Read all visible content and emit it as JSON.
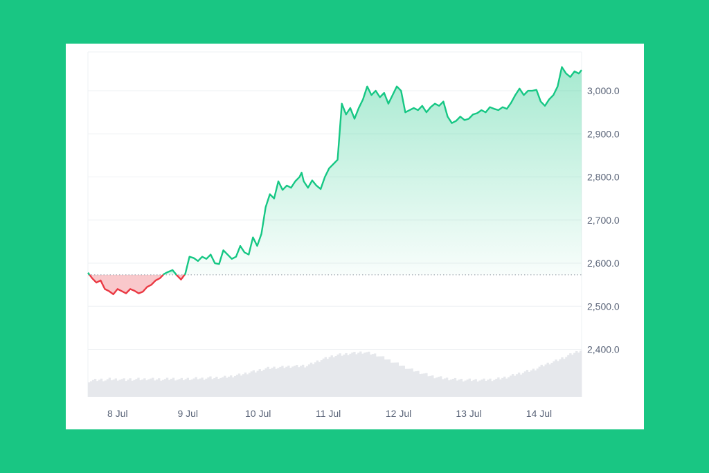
{
  "colors": {
    "page_background": "#19c683",
    "card_background": "#ffffff",
    "up_line": "#16c784",
    "down_line": "#ea3943",
    "up_fill": "#16c784",
    "down_fill": "#ea3943",
    "grid": "#eef0f3",
    "baseline": "#9aa1ab",
    "volume": "#e6e8ec",
    "tick_text": "#5a6478"
  },
  "chart_data": {
    "type": "area",
    "title": "",
    "xlabel": "",
    "ylabel": "",
    "x_tick_labels": [
      "8 Jul",
      "9 Jul",
      "10 Jul",
      "11 Jul",
      "12 Jul",
      "13 Jul",
      "14 Jul"
    ],
    "y_tick_labels": [
      "2,400.0",
      "2,500.0",
      "2,600.0",
      "2,700.0",
      "2,800.0",
      "2,900.0",
      "3,000.0"
    ],
    "y_ticks": [
      2400,
      2500,
      2600,
      2700,
      2800,
      2900,
      3000
    ],
    "ylim": [
      2290,
      3090
    ],
    "xlim": [
      0,
      7.0
    ],
    "baseline": 2573,
    "y_axis_position": "right",
    "grid": true,
    "legend": "none",
    "x_unit": "days from start of 8 Jul",
    "series": [
      {
        "x": [
          0,
          0.06,
          0.12,
          0.18,
          0.24,
          0.3,
          0.36,
          0.42,
          0.48,
          0.54,
          0.6,
          0.66,
          0.72,
          0.78,
          0.84,
          0.9,
          0.96,
          1.02,
          1.08,
          1.14,
          1.2,
          1.26,
          1.32,
          1.38,
          1.44,
          1.5,
          1.56,
          1.62,
          1.68,
          1.74,
          1.8,
          1.86,
          1.92,
          1.98,
          2.04,
          2.1,
          2.16,
          2.22,
          2.28,
          2.34,
          2.4,
          2.46,
          2.52,
          2.58,
          2.64,
          2.7,
          2.76,
          2.82,
          2.88,
          2.94,
          3.0,
          3.03,
          3.06,
          3.12,
          3.18,
          3.24,
          3.3,
          3.36,
          3.42,
          3.48,
          3.54,
          3.6,
          3.66,
          3.72,
          3.78,
          3.84,
          3.9,
          3.96,
          4.02,
          4.08,
          4.14,
          4.2,
          4.26,
          4.32,
          4.38,
          4.44,
          4.5,
          4.56,
          4.62,
          4.68,
          4.74,
          4.8,
          4.86,
          4.92,
          4.98,
          5.04,
          5.1,
          5.16,
          5.22,
          5.28,
          5.34,
          5.4,
          5.46,
          5.52,
          5.58,
          5.64,
          5.7,
          5.76,
          5.82,
          5.88,
          5.94,
          6.0,
          6.06,
          6.12,
          6.18,
          6.24,
          6.3,
          6.36,
          6.42,
          6.48,
          6.54,
          6.6,
          6.66,
          6.72,
          6.78,
          6.84,
          6.9,
          6.96,
          7.0
        ],
        "y": [
          2578,
          2565,
          2555,
          2560,
          2540,
          2535,
          2528,
          2540,
          2535,
          2530,
          2540,
          2536,
          2530,
          2534,
          2545,
          2550,
          2560,
          2565,
          2575,
          2580,
          2584,
          2572,
          2562,
          2575,
          2615,
          2612,
          2605,
          2615,
          2610,
          2620,
          2600,
          2598,
          2630,
          2620,
          2610,
          2615,
          2640,
          2625,
          2620,
          2660,
          2640,
          2668,
          2730,
          2760,
          2750,
          2790,
          2770,
          2780,
          2775,
          2790,
          2800,
          2810,
          2790,
          2775,
          2792,
          2780,
          2772,
          2800,
          2820,
          2830,
          2840,
          2970,
          2945,
          2960,
          2935,
          2960,
          2980,
          3010,
          2990,
          3000,
          2985,
          2995,
          2970,
          2990,
          3010,
          3000,
          2950,
          2955,
          2960,
          2955,
          2965,
          2950,
          2962,
          2970,
          2965,
          2975,
          2940,
          2925,
          2930,
          2940,
          2932,
          2935,
          2945,
          2948,
          2955,
          2950,
          2962,
          2958,
          2955,
          2962,
          2958,
          2972,
          2990,
          3005,
          2990,
          3000,
          3000,
          3002,
          2975,
          2965,
          2980,
          2990,
          3010,
          3055,
          3040,
          3032,
          3045,
          3040,
          3048
        ],
        "volume": [
          0.32,
          0.33,
          0.34,
          0.35,
          0.34,
          0.36,
          0.35,
          0.36,
          0.35,
          0.34,
          0.36,
          0.35,
          0.36,
          0.35,
          0.37,
          0.36,
          0.35,
          0.36,
          0.35,
          0.36,
          0.37,
          0.36,
          0.35,
          0.36,
          0.37,
          0.36,
          0.38,
          0.37,
          0.38,
          0.39,
          0.38,
          0.4,
          0.39,
          0.41,
          0.42,
          0.44,
          0.45,
          0.47,
          0.5,
          0.52,
          0.53,
          0.56,
          0.58,
          0.6,
          0.61,
          0.62,
          0.62,
          0.63,
          0.64,
          0.65,
          0.64,
          0.66,
          0.65,
          0.68,
          0.72,
          0.76,
          0.8,
          0.82,
          0.86,
          0.88,
          0.9,
          0.9,
          0.92,
          0.94,
          0.93,
          0.95,
          0.96,
          0.94,
          0.92,
          0.9,
          0.86,
          0.82,
          0.78,
          0.74,
          0.7,
          0.66,
          0.62,
          0.58,
          0.55,
          0.52,
          0.49,
          0.46,
          0.43,
          0.41,
          0.4,
          0.38,
          0.37,
          0.36,
          0.35,
          0.35,
          0.34,
          0.34,
          0.34,
          0.34,
          0.34,
          0.34,
          0.35,
          0.35,
          0.36,
          0.38,
          0.4,
          0.42,
          0.45,
          0.48,
          0.5,
          0.53,
          0.55,
          0.58,
          0.62,
          0.66,
          0.7,
          0.73,
          0.76,
          0.8,
          0.84,
          0.88,
          0.92,
          0.96,
          1.0
        ]
      }
    ]
  }
}
